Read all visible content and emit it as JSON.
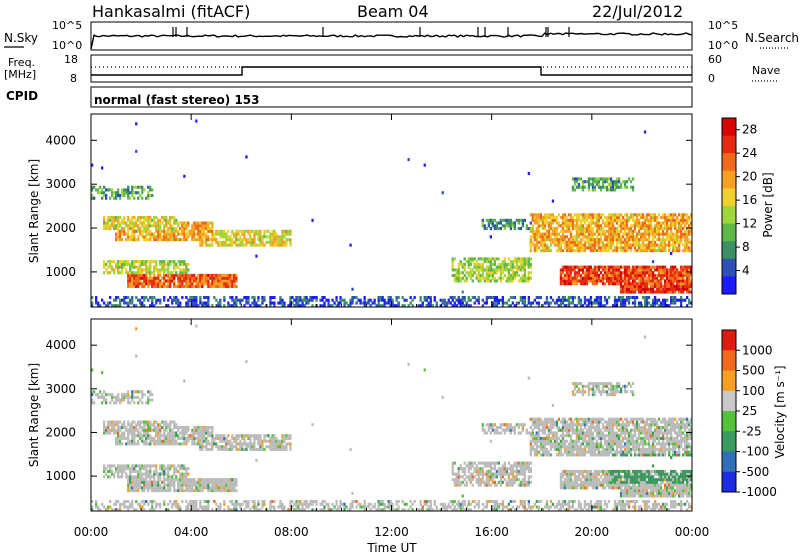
{
  "header": {
    "station": "Hankasalmi (fitACF)",
    "beam": "Beam 04",
    "date": "22/Jul/2012"
  },
  "top_panel": {
    "left_label": "N.Sky",
    "right_label": "N.Search",
    "left_ticks": [
      "10^5",
      "10^0"
    ],
    "right_ticks": [
      "10^5",
      "10^0"
    ]
  },
  "freq_panel": {
    "left_label_1": "Freq.",
    "left_label_2": "[MHz]",
    "right_label": "Nave",
    "left_ticks": [
      "18",
      "8"
    ],
    "right_ticks": [
      "60",
      "0"
    ]
  },
  "cpid": {
    "label": "CPID",
    "value": "normal (fast stereo) 153"
  },
  "chart_data": [
    {
      "type": "heatmap",
      "panel": "power",
      "ylabel": "Slant Range [km]",
      "yticks": [
        "1000",
        "2000",
        "3000",
        "4000"
      ],
      "ylim": [
        200,
        4600
      ],
      "colorbar_label": "Power [dB]",
      "colorbar_ticks": [
        "4",
        "8",
        "12",
        "16",
        "20",
        "24",
        "28"
      ],
      "colorbar_range": [
        0,
        30
      ],
      "colors": [
        "#1c1cff",
        "#2f50b7",
        "#3d8f67",
        "#5db84a",
        "#9ed63b",
        "#f0d02c",
        "#f5a022",
        "#f06a1c",
        "#e42a14",
        "#d80000"
      ],
      "ground_scatter_color": "#a9a9a9"
    },
    {
      "type": "heatmap",
      "panel": "velocity",
      "ylabel": "Slant Range [km]",
      "yticks": [
        "1000",
        "2000",
        "3000",
        "4000"
      ],
      "ylim": [
        200,
        4600
      ],
      "colorbar_label": "Velocity [m s⁻¹]",
      "colorbar_ticks": [
        "1000",
        "500",
        "100",
        "25",
        "-25",
        "-100",
        "-500",
        "-1000"
      ],
      "colorbar_range": [
        -1000,
        1000
      ],
      "colors": [
        "#1c2ce0",
        "#2f70b8",
        "#3c9a60",
        "#55c23c",
        "#c8c8c8",
        "#f5a022",
        "#f06a1c",
        "#e01a10"
      ],
      "ground_scatter_color": "#bcbcbc"
    }
  ],
  "x_axis": {
    "ticks": [
      "00:00",
      "04:00",
      "08:00",
      "12:00",
      "16:00",
      "20:00",
      "00:00"
    ],
    "label": "Time UT"
  }
}
